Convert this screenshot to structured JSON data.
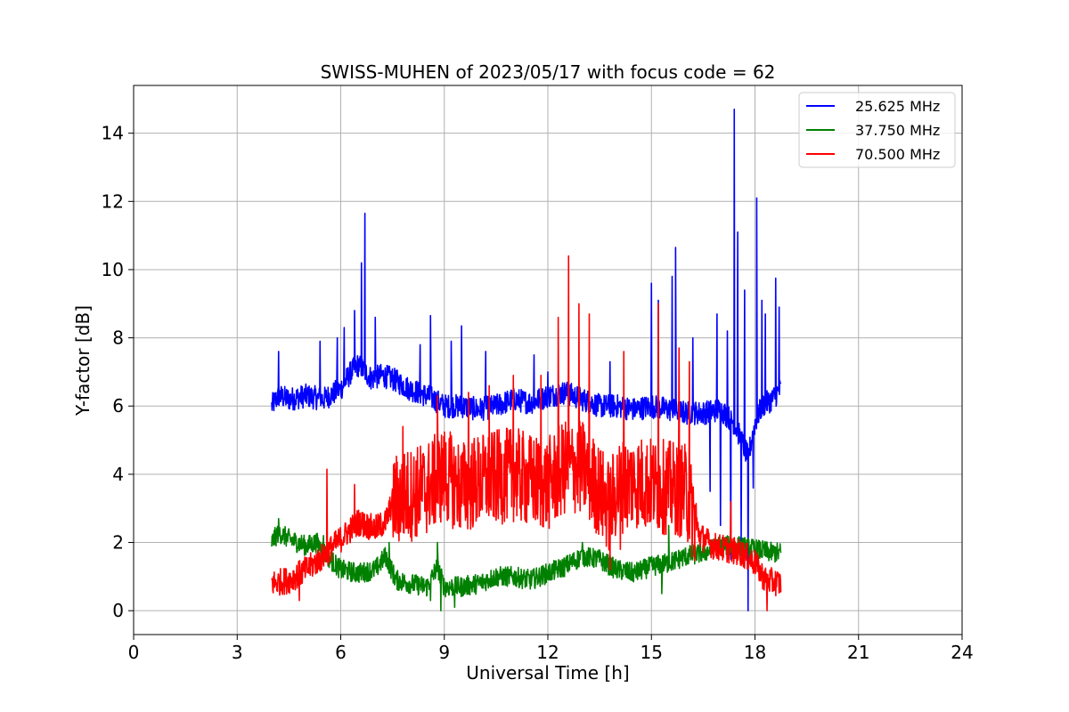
{
  "chart_data": {
    "type": "line",
    "title": "SWISS-MUHEN of 2023/05/17 with focus code = 62",
    "xlabel": "Universal Time [h]",
    "ylabel": "Y-factor [dB]",
    "xlim": [
      0,
      24
    ],
    "ylim": [
      -0.7,
      15.4
    ],
    "xticks": [
      0,
      3,
      6,
      9,
      12,
      15,
      18,
      21,
      24
    ],
    "xtick_labels": [
      "0",
      "3",
      "6",
      "9",
      "12",
      "15",
      "18",
      "21",
      "24"
    ],
    "yticks": [
      0,
      2,
      4,
      6,
      8,
      10,
      12,
      14
    ],
    "ytick_labels": [
      "0",
      "2",
      "4",
      "6",
      "8",
      "10",
      "12",
      "14"
    ],
    "grid": true,
    "legend_position": "top-right",
    "series": [
      {
        "name": "25.625 MHz",
        "color": "#0000ff",
        "x": [
          4.0,
          4.2,
          4.5,
          5.0,
          5.5,
          6.0,
          6.3,
          6.5,
          6.7,
          6.9,
          7.2,
          7.5,
          8.0,
          8.5,
          8.7,
          9.0,
          9.5,
          10.0,
          10.5,
          11.0,
          11.5,
          12.0,
          12.5,
          13.0,
          13.5,
          14.0,
          14.5,
          15.0,
          15.5,
          16.0,
          16.5,
          17.0,
          17.4,
          17.6,
          17.8,
          18.0,
          18.2,
          18.5,
          18.75
        ],
        "y": [
          6.0,
          6.3,
          6.2,
          6.3,
          6.2,
          6.5,
          7.0,
          7.2,
          7.0,
          6.8,
          6.9,
          6.8,
          6.5,
          6.3,
          6.2,
          6.0,
          6.0,
          5.9,
          6.0,
          6.2,
          6.1,
          6.3,
          6.4,
          6.2,
          6.0,
          6.0,
          5.9,
          6.0,
          5.9,
          5.8,
          5.8,
          5.9,
          5.5,
          5.0,
          4.5,
          5.5,
          6.0,
          6.2,
          6.5
        ],
        "peaks": [
          {
            "x": 4.2,
            "y": 7.6
          },
          {
            "x": 5.4,
            "y": 7.9
          },
          {
            "x": 5.9,
            "y": 8.0
          },
          {
            "x": 6.1,
            "y": 8.3
          },
          {
            "x": 6.4,
            "y": 8.8
          },
          {
            "x": 6.6,
            "y": 10.2
          },
          {
            "x": 6.7,
            "y": 11.65
          },
          {
            "x": 7.0,
            "y": 8.6
          },
          {
            "x": 8.3,
            "y": 7.8
          },
          {
            "x": 8.6,
            "y": 8.65
          },
          {
            "x": 9.2,
            "y": 7.9
          },
          {
            "x": 9.5,
            "y": 8.35
          },
          {
            "x": 10.2,
            "y": 7.6
          },
          {
            "x": 11.6,
            "y": 7.5
          },
          {
            "x": 12.0,
            "y": 7.0
          },
          {
            "x": 13.8,
            "y": 7.3
          },
          {
            "x": 15.0,
            "y": 9.6
          },
          {
            "x": 15.2,
            "y": 9.1
          },
          {
            "x": 15.6,
            "y": 9.8
          },
          {
            "x": 15.7,
            "y": 10.65
          },
          {
            "x": 16.2,
            "y": 8.0
          },
          {
            "x": 16.9,
            "y": 8.7
          },
          {
            "x": 17.2,
            "y": 8.2
          },
          {
            "x": 17.4,
            "y": 14.7
          },
          {
            "x": 17.5,
            "y": 11.1
          },
          {
            "x": 17.6,
            "y": 11.3
          },
          {
            "x": 17.7,
            "y": 9.4
          },
          {
            "x": 18.05,
            "y": 12.1
          },
          {
            "x": 18.2,
            "y": 9.1
          },
          {
            "x": 18.3,
            "y": 8.7
          },
          {
            "x": 18.6,
            "y": 9.75
          },
          {
            "x": 18.7,
            "y": 8.9
          }
        ],
        "dips": [
          {
            "x": 16.7,
            "y": 3.5
          },
          {
            "x": 17.0,
            "y": 2.5
          },
          {
            "x": 17.3,
            "y": 1.5
          },
          {
            "x": 17.6,
            "y": 2.0
          },
          {
            "x": 17.8,
            "y": 0.0
          },
          {
            "x": 17.95,
            "y": 3.6
          }
        ]
      },
      {
        "name": "37.750 MHz",
        "color": "#008000",
        "x": [
          4.0,
          4.2,
          4.5,
          5.0,
          5.3,
          5.7,
          6.0,
          6.5,
          7.0,
          7.3,
          7.6,
          8.0,
          8.5,
          8.8,
          9.0,
          9.5,
          10.0,
          10.5,
          11.0,
          11.5,
          12.0,
          12.5,
          13.0,
          13.5,
          14.0,
          14.5,
          15.0,
          15.5,
          16.0,
          16.5,
          17.0,
          17.5,
          18.0,
          18.5,
          18.75
        ],
        "y": [
          2.0,
          2.3,
          2.1,
          1.9,
          2.0,
          1.5,
          1.2,
          1.1,
          1.2,
          1.6,
          0.9,
          0.8,
          0.7,
          1.3,
          0.7,
          0.7,
          0.8,
          1.0,
          1.0,
          0.9,
          1.1,
          1.3,
          1.6,
          1.5,
          1.2,
          1.1,
          1.3,
          1.4,
          1.6,
          1.7,
          1.9,
          1.9,
          1.8,
          1.7,
          1.7
        ],
        "peaks": [
          {
            "x": 4.2,
            "y": 2.7
          },
          {
            "x": 5.5,
            "y": 2.2
          },
          {
            "x": 7.4,
            "y": 2.0
          },
          {
            "x": 8.8,
            "y": 2.0
          },
          {
            "x": 13.0,
            "y": 2.0
          },
          {
            "x": 15.5,
            "y": 2.5
          }
        ],
        "dips": [
          {
            "x": 8.6,
            "y": 0.3
          },
          {
            "x": 8.9,
            "y": 0.0
          },
          {
            "x": 9.3,
            "y": 0.1
          },
          {
            "x": 15.3,
            "y": 0.5
          }
        ]
      },
      {
        "name": "70.500 MHz",
        "color": "#ff0000",
        "x": [
          4.0,
          4.5,
          5.0,
          5.5,
          5.7,
          6.0,
          6.5,
          7.0,
          7.3,
          7.5,
          8.0,
          8.5,
          9.0,
          9.5,
          10.0,
          10.5,
          11.0,
          11.5,
          12.0,
          12.5,
          13.0,
          13.5,
          13.8,
          14.0,
          14.5,
          15.0,
          15.5,
          16.0,
          16.4,
          16.8,
          17.2,
          17.6,
          18.0,
          18.3,
          18.75
        ],
        "y": [
          0.8,
          0.9,
          1.2,
          1.6,
          1.8,
          2.1,
          2.6,
          2.4,
          2.6,
          3.2,
          3.4,
          3.6,
          4.0,
          3.6,
          3.8,
          3.9,
          4.0,
          3.8,
          3.7,
          4.2,
          4.2,
          3.5,
          3.0,
          3.6,
          3.8,
          3.7,
          3.6,
          3.5,
          2.2,
          1.9,
          1.8,
          1.7,
          1.4,
          0.9,
          0.8
        ],
        "peaks": [
          {
            "x": 5.6,
            "y": 4.15
          },
          {
            "x": 6.4,
            "y": 3.7
          },
          {
            "x": 7.8,
            "y": 5.4
          },
          {
            "x": 8.8,
            "y": 6.3
          },
          {
            "x": 9.7,
            "y": 6.4
          },
          {
            "x": 10.3,
            "y": 6.6
          },
          {
            "x": 11.0,
            "y": 6.9
          },
          {
            "x": 11.8,
            "y": 6.9
          },
          {
            "x": 12.3,
            "y": 8.6
          },
          {
            "x": 12.6,
            "y": 10.4
          },
          {
            "x": 12.9,
            "y": 9.0
          },
          {
            "x": 13.2,
            "y": 8.7
          },
          {
            "x": 14.2,
            "y": 7.6
          },
          {
            "x": 15.2,
            "y": 9.0
          },
          {
            "x": 15.8,
            "y": 7.7
          },
          {
            "x": 16.1,
            "y": 7.3
          },
          {
            "x": 17.3,
            "y": 3.2
          }
        ],
        "dips": [
          {
            "x": 4.8,
            "y": 0.3
          },
          {
            "x": 13.8,
            "y": 1.2
          },
          {
            "x": 14.1,
            "y": 1.8
          },
          {
            "x": 18.35,
            "y": 0.0
          }
        ]
      }
    ]
  }
}
